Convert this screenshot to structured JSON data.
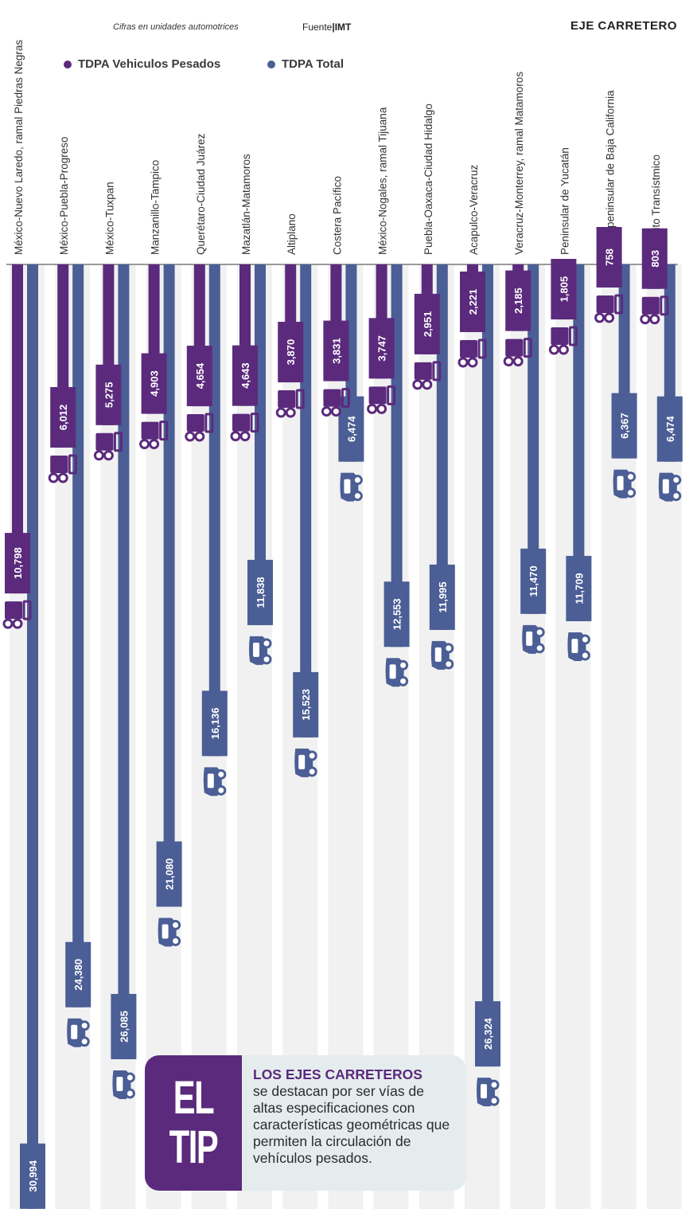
{
  "header": {
    "note": "Cifras en unidades automotrices",
    "source_label": "Fuente",
    "source_sep": "|",
    "source_value": "IMT",
    "title": "EJE CARRETERO"
  },
  "legend": [
    {
      "label": "TDPA Vehiculos Pesados",
      "color": "#5b2a7c"
    },
    {
      "label": "TDPA Total",
      "color": "#4b5e95"
    }
  ],
  "chart_data": {
    "type": "bar",
    "categories": [
      "México-Nuevo Laredo, ramal Piedras Negras",
      "México-Puebla-Progreso",
      "México-Tuxpan",
      "Manzanillo-Tampico",
      "Querétaro-Ciudad Juárez",
      "Mazatlán-Matamoros",
      "Altiplano",
      "Costera Pacífico",
      "México-Nogales, ramal Tijuana",
      "Puebla-Oaxaca-Ciudad Hidalgo",
      "Acapulco-Veracruz",
      "Veracruz-Monterrey, ramal Matamoros",
      "Peninsular de Yucatán",
      "Transpeninsular de Baja California",
      "Circuito Transístmico"
    ],
    "series": [
      {
        "name": "TDPA Vehiculos Pesados",
        "color": "#5b2a7c",
        "values": [
          10798,
          6012,
          5275,
          4903,
          4654,
          4643,
          3870,
          3831,
          3747,
          2951,
          2221,
          2185,
          1805,
          758,
          803
        ],
        "labels": [
          "10,798",
          "6,012",
          "5,275",
          "4,903",
          "4,654",
          "4,643",
          "3,870",
          "3,831",
          "3,747",
          "2,951",
          "2,221",
          "2,185",
          "1,805",
          "758",
          "803"
        ]
      },
      {
        "name": "TDPA Total",
        "color": "#4b5e95",
        "values": [
          30994,
          24380,
          26085,
          21080,
          16136,
          11838,
          15523,
          6474,
          12553,
          11995,
          26324,
          11470,
          11709,
          6367,
          6474
        ],
        "labels": [
          "30,994",
          "24,380",
          "26,085",
          "21,080",
          "16,136",
          "11,838",
          "15,523",
          "6,474",
          "12,553",
          "11,995",
          "26,324",
          "11,470",
          "11,709",
          "6,367",
          "6,474"
        ]
      }
    ],
    "orientation": "vertical-down",
    "ylim": [
      0,
      31000
    ]
  },
  "tip": {
    "badge_line1": "EL",
    "badge_line2": "TIP",
    "heading": "LOS EJES CARRETEROS",
    "body": "se destacan por ser vías de altas especificaciones con características geométricas que permiten la circulación de vehículos pesados."
  }
}
